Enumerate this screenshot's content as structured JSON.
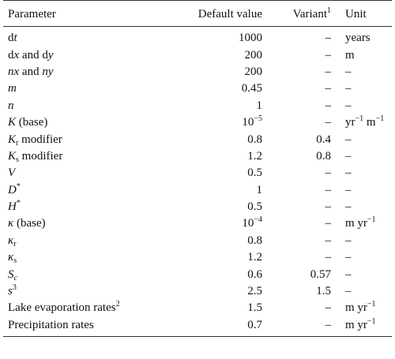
{
  "header": {
    "parameter": "Parameter",
    "default_value": "Default value",
    "variant": "Variant",
    "variant_sup": "1",
    "unit": "Unit"
  },
  "rows": [
    {
      "p_pre": "d",
      "p_it": "t",
      "p_post": "",
      "default": "1000",
      "variant": "–",
      "unit": "years"
    },
    {
      "p_pre": "d",
      "p_it": "x",
      "p_post": " and d",
      "p_it2": "y",
      "default": "200",
      "variant": "–",
      "unit": "m"
    },
    {
      "p_it": "nx",
      "p_post": " and ",
      "p_it2": "ny",
      "default": "200",
      "variant": "–",
      "unit": "–"
    },
    {
      "p_it": "m",
      "default": "0.45",
      "variant": "–",
      "unit": "–"
    },
    {
      "p_it": "n",
      "default": "1",
      "variant": "–",
      "unit": "–"
    },
    {
      "p_it": "K",
      "p_post": " (base)",
      "default_base": "10",
      "default_exp": "−5",
      "variant": "–",
      "unit_a": "yr",
      "unit_a_exp": "−1",
      "unit_b": " m",
      "unit_b_exp": "−1"
    },
    {
      "p_it": "K",
      "p_sub": "r",
      "p_post": " modifier",
      "default": "0.8",
      "variant": "0.4",
      "unit": "–"
    },
    {
      "p_it": "K",
      "p_sub": "s",
      "p_post": " modifier",
      "default": "1.2",
      "variant": "0.8",
      "unit": "–"
    },
    {
      "p_it": "V",
      "default": "0.5",
      "variant": "–",
      "unit": "–"
    },
    {
      "p_it": "D",
      "p_sup": "*",
      "default": "1",
      "variant": "–",
      "unit": "–"
    },
    {
      "p_it": "H",
      "p_sup": "*",
      "default": "0.5",
      "variant": "–",
      "unit": "–"
    },
    {
      "p_it": "κ",
      "p_post": " (base)",
      "default_base": "10",
      "default_exp": "−4",
      "variant": "–",
      "unit_a": "m yr",
      "unit_a_exp": "−1"
    },
    {
      "p_it": "κ",
      "p_sub": "r",
      "default": "0.8",
      "variant": "–",
      "unit": "–"
    },
    {
      "p_it": "κ",
      "p_sub": "s",
      "default": "1.2",
      "variant": "–",
      "unit": "–"
    },
    {
      "p_it": "S",
      "p_sub_it": "c",
      "default": "0.6",
      "variant": "0.57",
      "unit": "–"
    },
    {
      "p_it": "s",
      "p_sup": "3",
      "default": "2.5",
      "variant": "1.5",
      "unit": "–"
    },
    {
      "p_pre": "Lake evaporation rates",
      "p_sup": "2",
      "default": "1.5",
      "variant": "–",
      "unit_a": "m yr",
      "unit_a_exp": "−1"
    },
    {
      "p_pre": "Precipitation rates",
      "default": "0.7",
      "variant": "–",
      "unit_a": "m yr",
      "unit_a_exp": "−1"
    }
  ]
}
